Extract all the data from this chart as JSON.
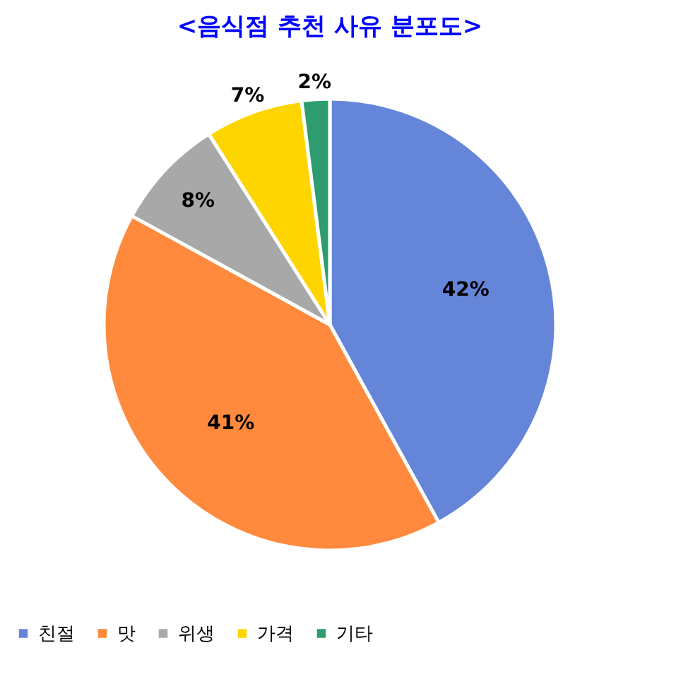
{
  "chart_data": {
    "type": "pie",
    "title": "<음식점 추천 사유 분포도>",
    "categories": [
      "친절",
      "맛",
      "위생",
      "가격",
      "기타"
    ],
    "values": [
      42,
      41,
      8,
      7,
      2
    ],
    "colors": [
      "#6585d9",
      "#ff8a3d",
      "#a8a8a8",
      "#ffd500",
      "#2e9c6e"
    ],
    "value_labels": [
      "42%",
      "41%",
      "8%",
      "7%",
      "2%"
    ],
    "legend": "bottom"
  }
}
